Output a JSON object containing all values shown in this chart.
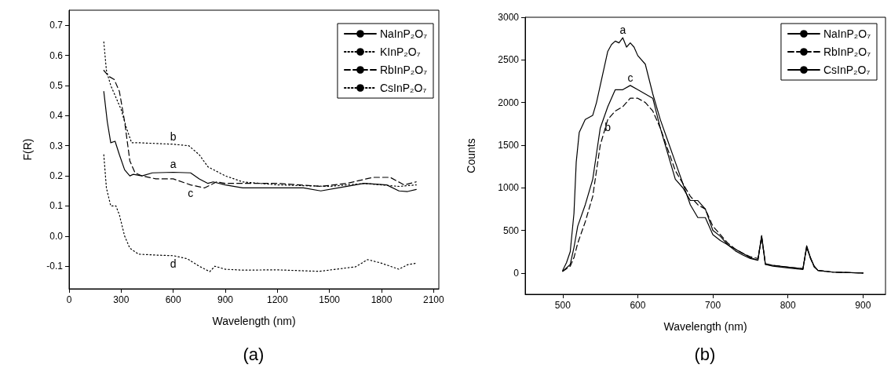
{
  "chart_data": [
    {
      "type": "line",
      "xlabel": "Wavelength (nm)",
      "ylabel": "F(R)",
      "xlim": [
        0,
        2130
      ],
      "xticks": [
        0,
        300,
        600,
        900,
        1200,
        1500,
        1800,
        2100
      ],
      "ylim": [
        -0.175,
        0.75
      ],
      "yticks": [
        -0.1,
        {
          "value": 0,
          "label": "0.0"
        },
        0.1,
        0.2,
        0.3,
        0.4,
        0.5,
        0.6,
        0.7
      ],
      "legend": "top right",
      "annotations": [
        {
          "text": "a",
          "x": 600,
          "y": 0.212
        },
        {
          "text": "b",
          "x": 600,
          "y": 0.305
        },
        {
          "text": "c",
          "x": 700,
          "y": 0.17
        },
        {
          "text": "d",
          "x": 600,
          "y": -0.065
        },
        "(a)"
      ],
      "series": [
        {
          "name": "NaInP₂O₇",
          "color": "#000000",
          "line_style": "solid",
          "x": [
            200,
            220,
            240,
            265,
            290,
            320,
            350,
            370,
            420,
            480,
            600,
            700,
            750,
            800,
            830,
            900,
            1000,
            1200,
            1350,
            1450,
            1550,
            1700,
            1830,
            1900,
            1950,
            2000
          ],
          "values": [
            0.48,
            0.38,
            0.31,
            0.315,
            0.27,
            0.22,
            0.2,
            0.205,
            0.2,
            0.21,
            0.212,
            0.21,
            0.19,
            0.175,
            0.18,
            0.17,
            0.16,
            0.16,
            0.16,
            0.15,
            0.16,
            0.175,
            0.17,
            0.15,
            0.148,
            0.155
          ]
        },
        {
          "name": "KInP₂O₇",
          "color": "#000000",
          "line_style": "dotted",
          "x": [
            200,
            215,
            240,
            270,
            300,
            330,
            360,
            400,
            600,
            690,
            750,
            800,
            900,
            1000,
            1100,
            1200,
            1500,
            1700,
            1900,
            2000
          ],
          "values": [
            0.645,
            0.55,
            0.5,
            0.46,
            0.42,
            0.36,
            0.31,
            0.31,
            0.305,
            0.3,
            0.27,
            0.23,
            0.2,
            0.18,
            0.175,
            0.17,
            0.165,
            0.175,
            0.165,
            0.17
          ]
        },
        {
          "name": "RbInP₂O₇",
          "color": "#000000",
          "line_style": "dashed",
          "x": [
            200,
            230,
            260,
            290,
            320,
            350,
            380,
            420,
            500,
            600,
            700,
            780,
            850,
            900,
            1200,
            1450,
            1600,
            1750,
            1850,
            1930,
            2000
          ],
          "values": [
            0.55,
            0.53,
            0.52,
            0.48,
            0.38,
            0.25,
            0.21,
            0.2,
            0.19,
            0.19,
            0.17,
            0.16,
            0.18,
            0.175,
            0.175,
            0.165,
            0.175,
            0.195,
            0.195,
            0.17,
            0.18
          ]
        },
        {
          "name": "CsInP₂O₇",
          "color": "#000000",
          "line_style": "dotted",
          "x": [
            200,
            215,
            240,
            270,
            290,
            320,
            350,
            400,
            500,
            600,
            680,
            750,
            810,
            840,
            900,
            1000,
            1200,
            1440,
            1650,
            1720,
            1800,
            1900,
            1950,
            2000
          ],
          "values": [
            0.27,
            0.16,
            0.1,
            0.1,
            0.07,
            0.0,
            -0.04,
            -0.06,
            -0.063,
            -0.065,
            -0.075,
            -0.1,
            -0.118,
            -0.1,
            -0.11,
            -0.113,
            -0.112,
            -0.117,
            -0.102,
            -0.078,
            -0.09,
            -0.11,
            -0.095,
            -0.09
          ]
        }
      ]
    },
    {
      "type": "line",
      "xlabel": "Wavelength (nm)",
      "ylabel": "Counts",
      "xlim": [
        450,
        930
      ],
      "xticks": [
        500,
        600,
        700,
        800,
        900
      ],
      "ylim": [
        -250,
        3000
      ],
      "yticks": [
        0,
        500,
        1000,
        1500,
        2000,
        2500,
        3000
      ],
      "legend": "top right",
      "annotations": [
        {
          "text": "a",
          "x": 580,
          "y": 2760
        },
        {
          "text": "b",
          "x": 560,
          "y": 1800
        },
        {
          "text": "c",
          "x": 590,
          "y": 2200
        },
        "(b)"
      ],
      "series": [
        {
          "name": "NaInP₂O₇",
          "color": "#000000",
          "line_style": "solid",
          "x": [
            500,
            505,
            510,
            515,
            518,
            522,
            530,
            540,
            545,
            550,
            555,
            560,
            565,
            570,
            575,
            580,
            585,
            590,
            595,
            600,
            610,
            620,
            630,
            640,
            650,
            660,
            670,
            680,
            690,
            700,
            710,
            720,
            730,
            740,
            750,
            760,
            765,
            770,
            780,
            800,
            820,
            825,
            830,
            835,
            840,
            860,
            900
          ],
          "values": [
            30,
            120,
            250,
            700,
            1300,
            1650,
            1800,
            1850,
            2000,
            2200,
            2400,
            2600,
            2680,
            2720,
            2700,
            2760,
            2650,
            2700,
            2650,
            2550,
            2450,
            2100,
            1800,
            1550,
            1300,
            1050,
            800,
            650,
            650,
            450,
            380,
            330,
            280,
            230,
            180,
            150,
            430,
            100,
            90,
            70,
            50,
            310,
            170,
            80,
            30,
            10,
            0
          ]
        },
        {
          "name": "RbInP₂O₇",
          "color": "#000000",
          "line_style": "dashed",
          "x": [
            500,
            510,
            515,
            520,
            530,
            540,
            545,
            550,
            555,
            560,
            570,
            580,
            590,
            600,
            610,
            620,
            630,
            640,
            650,
            660,
            670,
            680,
            690,
            700,
            710,
            720,
            730,
            740,
            750,
            760,
            765,
            770,
            780,
            800,
            820,
            825,
            830,
            835,
            840,
            860,
            900
          ],
          "values": [
            20,
            80,
            180,
            350,
            600,
            900,
            1200,
            1500,
            1650,
            1800,
            1900,
            1950,
            2050,
            2050,
            2000,
            1900,
            1700,
            1450,
            1200,
            1050,
            900,
            800,
            750,
            550,
            450,
            350,
            280,
            230,
            190,
            170,
            420,
            110,
            90,
            70,
            50,
            300,
            180,
            70,
            30,
            10,
            0
          ]
        },
        {
          "name": "CsInP₂O₇",
          "color": "#000000",
          "line_style": "solid",
          "x": [
            500,
            510,
            515,
            520,
            530,
            540,
            545,
            550,
            560,
            570,
            580,
            590,
            600,
            610,
            620,
            630,
            640,
            650,
            660,
            670,
            680,
            690,
            700,
            710,
            720,
            730,
            740,
            750,
            760,
            765,
            770,
            780,
            800,
            820,
            825,
            830,
            835,
            840,
            860,
            900
          ],
          "values": [
            20,
            100,
            300,
            550,
            800,
            1100,
            1400,
            1700,
            1950,
            2150,
            2150,
            2200,
            2150,
            2100,
            2050,
            1700,
            1400,
            1100,
            1000,
            850,
            850,
            750,
            500,
            430,
            330,
            260,
            210,
            170,
            150,
            440,
            100,
            80,
            60,
            40,
            320,
            180,
            80,
            30,
            10,
            0
          ]
        }
      ]
    }
  ]
}
